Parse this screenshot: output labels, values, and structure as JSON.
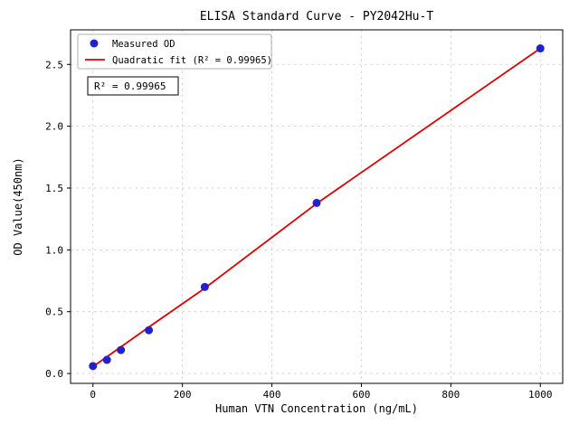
{
  "chart_data": {
    "type": "scatter",
    "title": "ELISA Standard Curve - PY2042Hu-T",
    "xlabel": "Human VTN Concentration (ng/mL)",
    "ylabel": "OD Value(450nm)",
    "xlim": [
      -50,
      1050
    ],
    "ylim": [
      -0.08,
      2.78
    ],
    "x_ticks": [
      0,
      200,
      400,
      600,
      800,
      1000
    ],
    "x_tick_labels": [
      "0",
      "200",
      "400",
      "600",
      "800",
      "1000"
    ],
    "y_ticks": [
      0.0,
      0.5,
      1.0,
      1.5,
      2.0,
      2.5
    ],
    "y_tick_labels": [
      "0.0",
      "0.5",
      "1.0",
      "1.5",
      "2.0",
      "2.5"
    ],
    "grid": true,
    "legend_position": "upper-left",
    "series": [
      {
        "name": "Measured OD",
        "type": "scatter",
        "marker": "circle",
        "color": "#2222cc",
        "x": [
          0,
          31.25,
          62.5,
          125,
          250,
          500,
          1000
        ],
        "y": [
          0.06,
          0.11,
          0.19,
          0.35,
          0.7,
          1.38,
          2.63
        ]
      },
      {
        "name": "Quadratic fit (R² = 0.99965)",
        "type": "line",
        "color": "#e00000",
        "x": [
          0,
          31.25,
          62.5,
          125,
          250,
          500,
          1000
        ],
        "y": [
          0.055,
          0.135,
          0.215,
          0.375,
          0.69,
          1.375,
          2.63
        ]
      }
    ],
    "annotation": "R² = 0.99965",
    "r_squared": 0.99965,
    "colors": {
      "points": "#2222cc",
      "fit_line": "#e00000",
      "grid": "#c9c9c9",
      "axis": "#000000",
      "background": "#ffffff"
    }
  }
}
